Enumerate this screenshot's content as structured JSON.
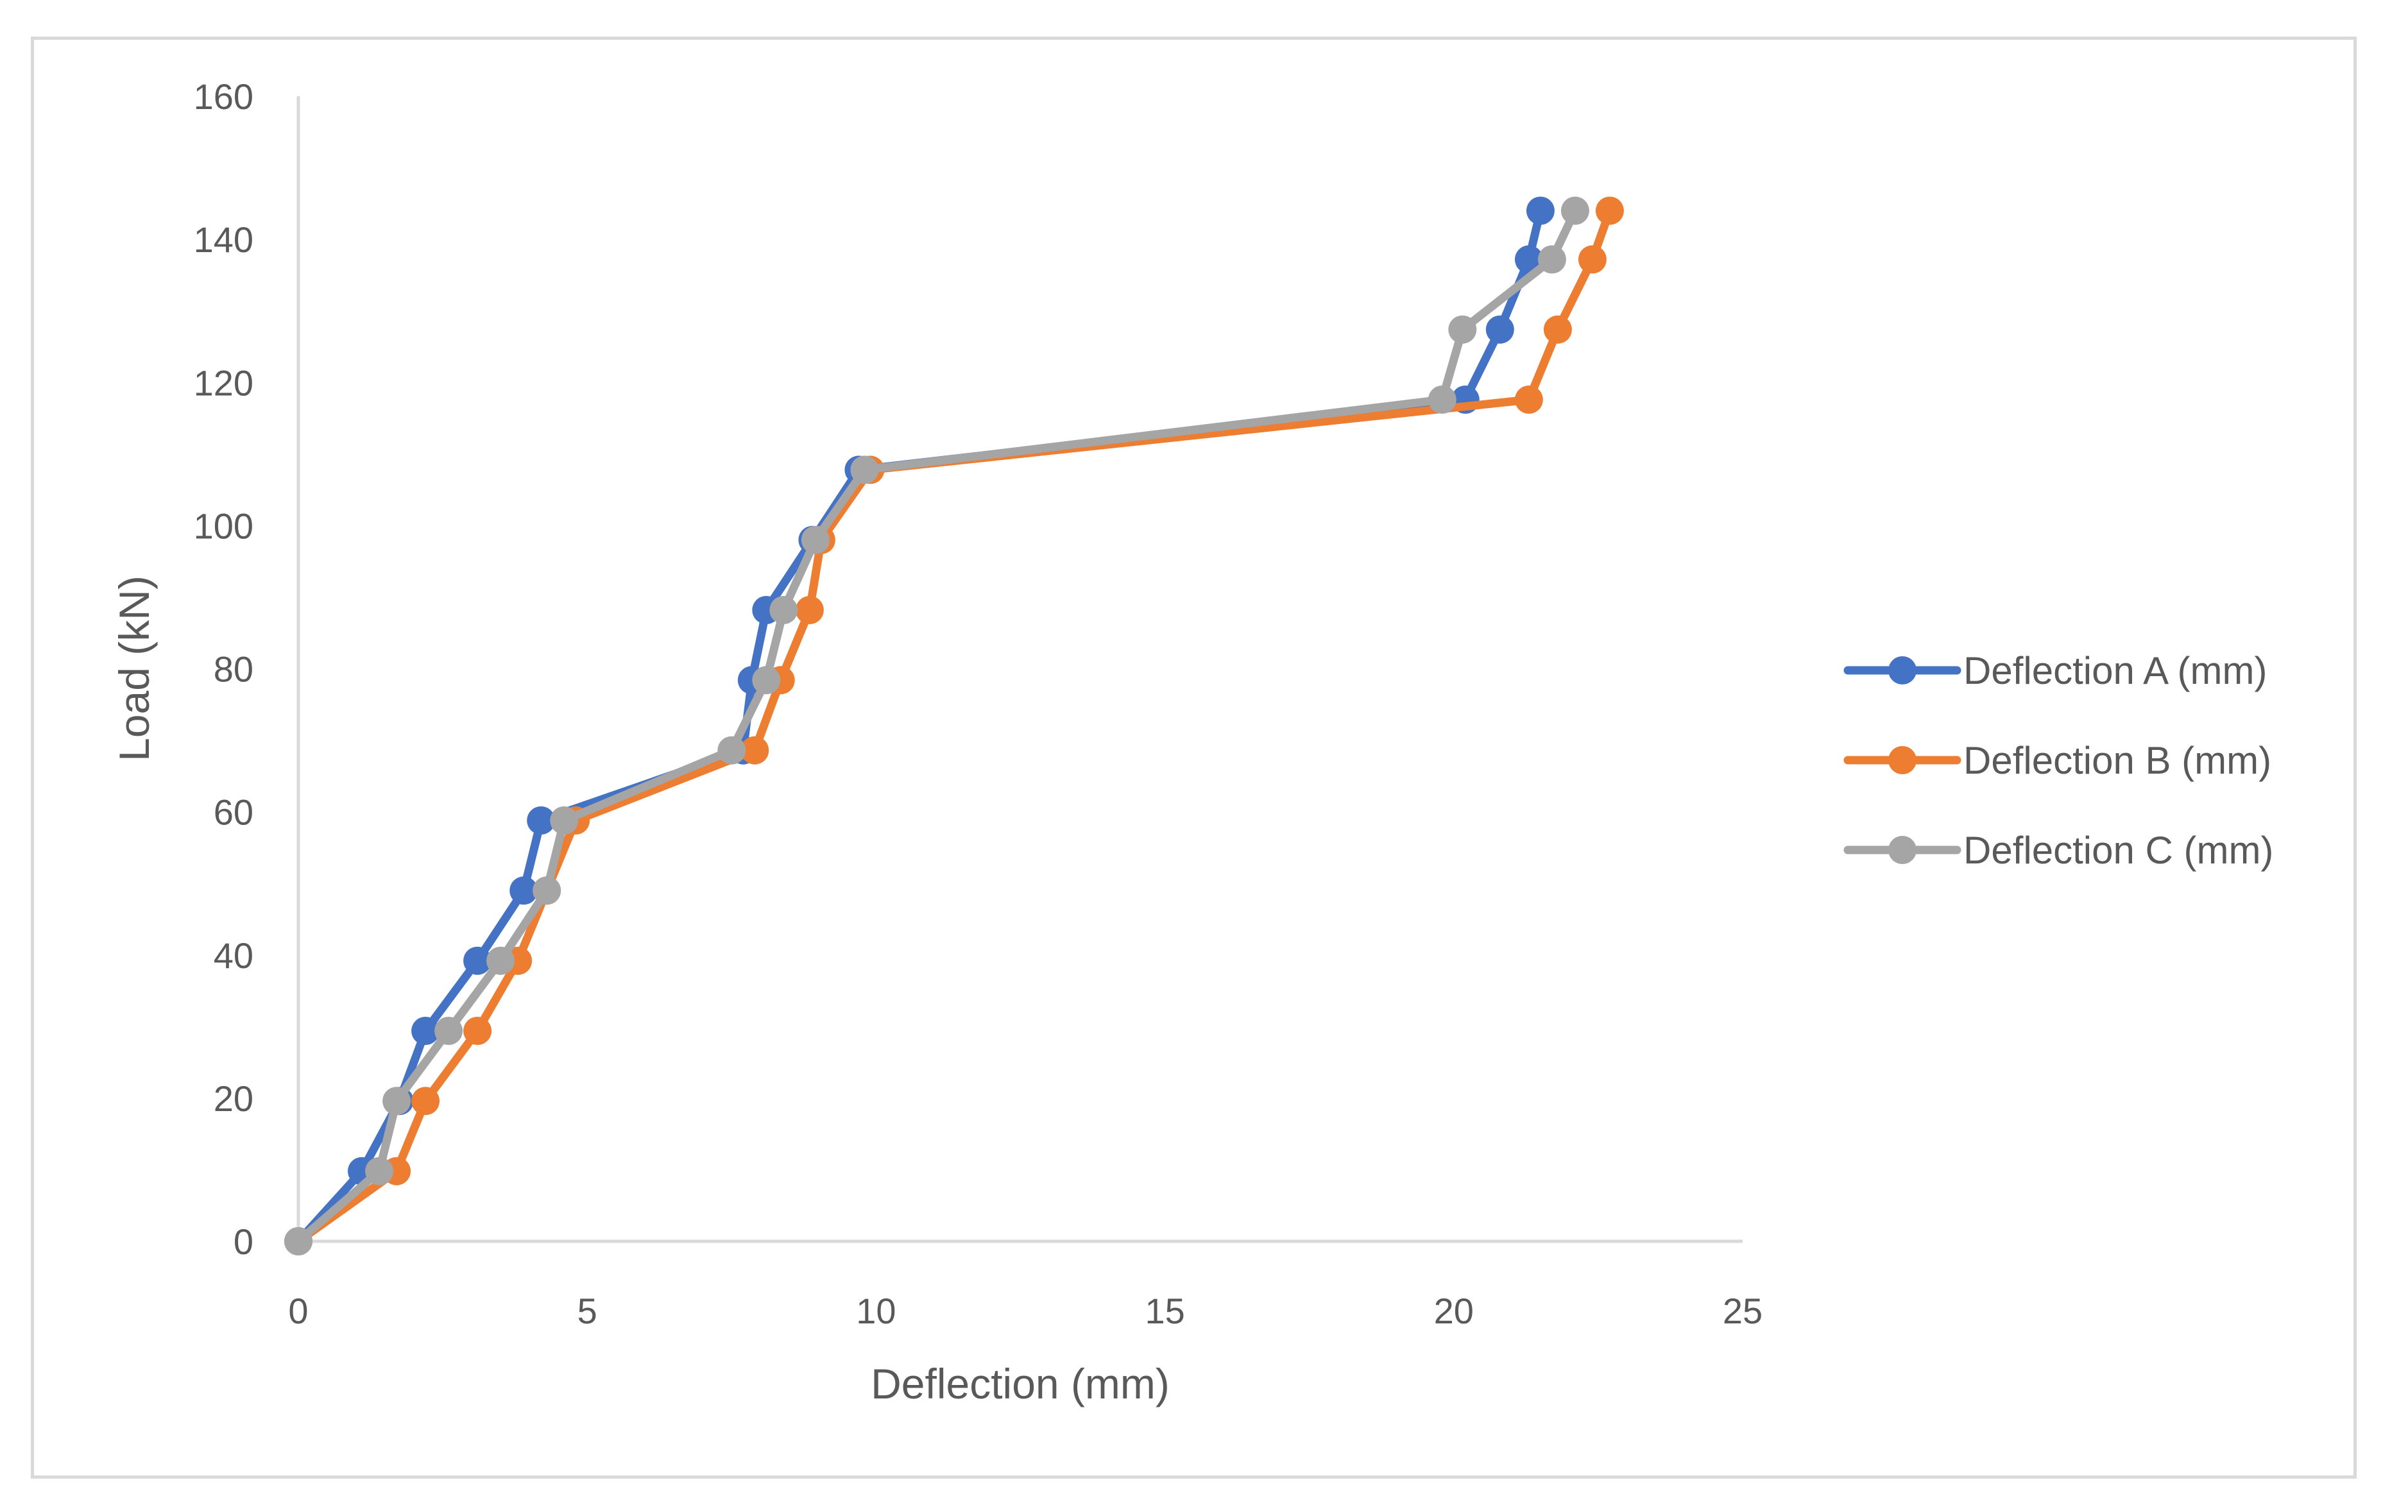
{
  "chart_data": {
    "type": "line",
    "title": "",
    "xlabel": "Deflection (mm)",
    "ylabel": "Load (kN)",
    "xlim": [
      0,
      25
    ],
    "ylim": [
      0,
      160
    ],
    "xticks": [
      0,
      5,
      10,
      15,
      20,
      25
    ],
    "yticks": [
      0,
      20,
      40,
      60,
      80,
      100,
      120,
      140,
      160
    ],
    "grid": false,
    "markers": true,
    "legend_position": "right",
    "series": [
      {
        "name": "Deflection A (mm)",
        "color": "#4472C4",
        "x": [
          0,
          1.1,
          1.75,
          2.2,
          3.1,
          3.9,
          4.2,
          7.7,
          7.85,
          8.1,
          8.9,
          9.7,
          20.2,
          20.8,
          21.3,
          21.5
        ],
        "y": [
          0,
          9.8,
          19.6,
          29.4,
          39.2,
          49,
          58.8,
          68.6,
          78.4,
          88.2,
          98,
          107.8,
          117.6,
          127.4,
          137.2,
          144
        ]
      },
      {
        "name": "Deflection B (mm)",
        "color": "#ED7D31",
        "x": [
          0,
          1.7,
          2.2,
          3.1,
          3.8,
          4.3,
          4.8,
          7.9,
          8.35,
          8.85,
          9.05,
          9.9,
          21.3,
          21.8,
          22.4,
          22.7
        ],
        "y": [
          0,
          9.8,
          19.6,
          29.4,
          39.2,
          49,
          58.8,
          68.6,
          78.4,
          88.2,
          98,
          107.8,
          117.6,
          127.4,
          137.2,
          144
        ]
      },
      {
        "name": "Deflection C (mm)",
        "color": "#A5A5A5",
        "x": [
          0,
          1.4,
          1.7,
          2.6,
          3.5,
          4.3,
          4.6,
          7.5,
          8.1,
          8.4,
          8.95,
          9.8,
          19.8,
          20.15,
          21.7,
          22.1
        ],
        "y": [
          0,
          9.8,
          19.6,
          29.4,
          39.2,
          49,
          58.8,
          68.6,
          78.4,
          88.2,
          98,
          107.8,
          117.6,
          127.4,
          137.2,
          144
        ]
      }
    ]
  }
}
